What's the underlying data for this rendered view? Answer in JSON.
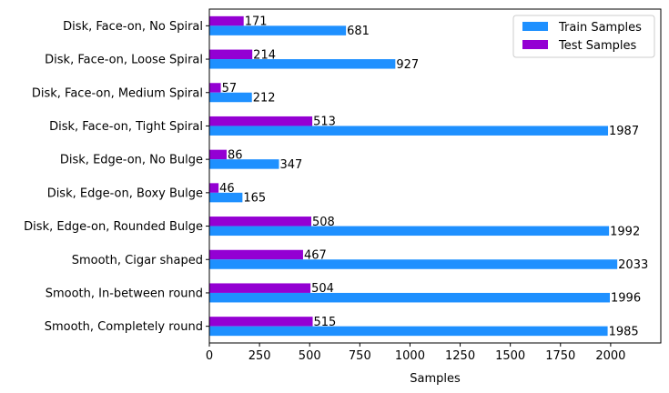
{
  "chart_data": {
    "type": "bar",
    "orientation": "horizontal",
    "categories": [
      "Disk, Face-on, No Spiral",
      "Disk, Face-on, Loose Spiral",
      "Disk, Face-on, Medium Spiral",
      "Disk, Face-on, Tight Spiral",
      "Disk, Edge-on, No Bulge",
      "Disk, Edge-on, Boxy Bulge",
      "Disk, Edge-on, Rounded Bulge",
      "Smooth, Cigar shaped",
      "Smooth, In-between round",
      "Smooth, Completely round"
    ],
    "series": [
      {
        "name": "Train Samples",
        "color": "#1e90ff",
        "values": [
          681,
          927,
          212,
          1987,
          347,
          165,
          1992,
          2033,
          1996,
          1985
        ]
      },
      {
        "name": "Test Samples",
        "color": "#9400d3",
        "values": [
          171,
          214,
          57,
          513,
          86,
          46,
          508,
          467,
          504,
          515
        ]
      }
    ],
    "xlabel": "Samples",
    "ylabel": "",
    "xlim": [
      0,
      2250
    ],
    "xticks": [
      0,
      250,
      500,
      750,
      1000,
      1250,
      1500,
      1750,
      2000
    ],
    "grid": false,
    "legend_position": "top-right"
  }
}
